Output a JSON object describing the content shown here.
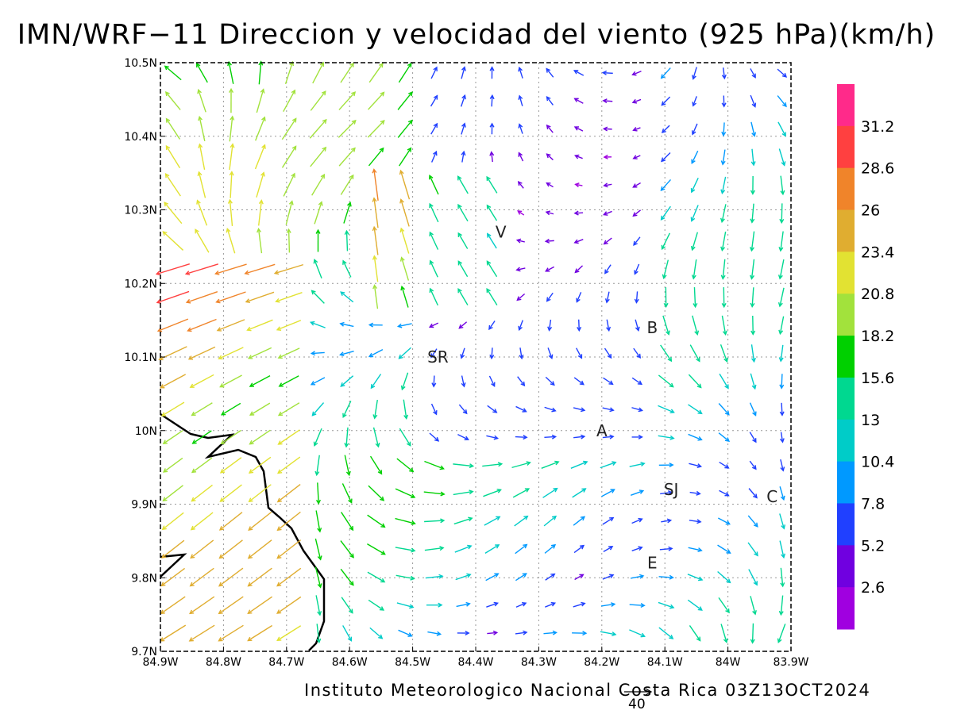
{
  "title": "IMN/WRF−11 Direccion y velocidad del viento (925 hPa)(km/h)",
  "footer": "Instituto Meteorologico Nacional Costa Rica 03Z13OCT2024",
  "reference_vector_label": "40",
  "map": {
    "lon_range": [
      -84.9,
      -83.9
    ],
    "lat_range": [
      9.7,
      10.5
    ],
    "x_tick_labels": [
      "84.9W",
      "84.8W",
      "84.7W",
      "84.6W",
      "84.5W",
      "84.4W",
      "84.3W",
      "84.2W",
      "84.1W",
      "84W",
      "83.9W"
    ],
    "y_tick_labels": [
      "9.7N",
      "9.8N",
      "9.9N",
      "10N",
      "10.1N",
      "10.2N",
      "10.3N",
      "10.4N",
      "10.5N"
    ],
    "grid": "dotted",
    "station_labels": [
      {
        "text": "V",
        "lon": -84.36,
        "lat": 10.27
      },
      {
        "text": "SR",
        "lon": -84.46,
        "lat": 10.1
      },
      {
        "text": "B",
        "lon": -84.12,
        "lat": 10.14
      },
      {
        "text": "A",
        "lon": -84.2,
        "lat": 10.0
      },
      {
        "text": "SJ",
        "lon": -84.09,
        "lat": 9.92
      },
      {
        "text": "C",
        "lon": -83.93,
        "lat": 9.91
      },
      {
        "text": "E",
        "lon": -84.12,
        "lat": 9.82
      }
    ]
  },
  "colorbar": {
    "labels": [
      "31.2",
      "28.6",
      "26",
      "23.4",
      "20.8",
      "18.2",
      "15.6",
      "13",
      "10.4",
      "7.8",
      "5.2",
      "2.6"
    ],
    "colors": [
      "#ff2a8a",
      "#ff4040",
      "#f0842a",
      "#e0ad30",
      "#e2e232",
      "#a2e23c",
      "#00d000",
      "#00d890",
      "#00ccc8",
      "#0099ff",
      "#2040ff",
      "#7000e0",
      "#a000e0"
    ],
    "levels": [
      2.6,
      5.2,
      7.8,
      10.4,
      13,
      15.6,
      18.2,
      20.8,
      23.4,
      26,
      28.6,
      31.2
    ]
  }
}
